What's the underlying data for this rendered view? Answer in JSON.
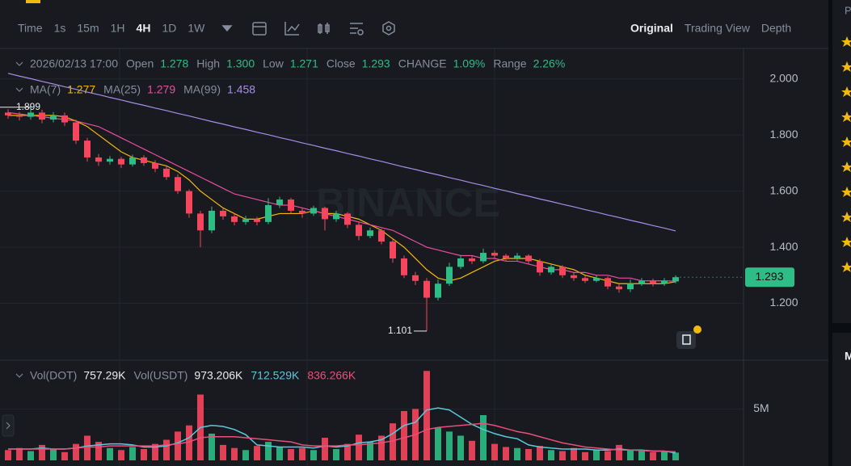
{
  "toolbar": {
    "intervals": [
      {
        "text": "Time",
        "active": false
      },
      {
        "text": "1s",
        "active": false
      },
      {
        "text": "15m",
        "active": false
      },
      {
        "text": "1H",
        "active": false
      },
      {
        "text": "4H",
        "active": true
      },
      {
        "text": "1D",
        "active": false
      },
      {
        "text": "1W",
        "active": false
      }
    ],
    "views": [
      {
        "text": "Original",
        "active": true
      },
      {
        "text": "Trading View",
        "active": false
      },
      {
        "text": "Depth",
        "active": false
      }
    ]
  },
  "side_panel": [
    "P",
    "M"
  ],
  "chart_data": {
    "type": "candlestick",
    "info_bar": {
      "date": "2026/02/13 17:00",
      "items": [
        {
          "label": "Open",
          "value": "1.278"
        },
        {
          "label": "High",
          "value": "1.300"
        },
        {
          "label": "Low",
          "value": "1.271"
        },
        {
          "label": "Close",
          "value": "1.293"
        },
        {
          "label": "CHANGE",
          "value": "1.09%"
        },
        {
          "label": "Range",
          "value": "2.26%"
        }
      ]
    },
    "up_color": "#2ebd85",
    "down_color": "#f6465d",
    "open": [
      1.88,
      1.87,
      1.865,
      1.88,
      1.855,
      1.87,
      1.845,
      1.78,
      1.72,
      1.705,
      1.715,
      1.695,
      1.72,
      1.7,
      1.68,
      1.65,
      1.6,
      1.52,
      1.46,
      1.53,
      1.51,
      1.49,
      1.5,
      1.49,
      1.55,
      1.57,
      1.53,
      1.52,
      1.54,
      1.5,
      1.52,
      1.48,
      1.44,
      1.46,
      1.42,
      1.36,
      1.3,
      1.28,
      1.22,
      1.27,
      1.33,
      1.36,
      1.35,
      1.38,
      1.37,
      1.36,
      1.37,
      1.35,
      1.31,
      1.33,
      1.3,
      1.29,
      1.28,
      1.29,
      1.26,
      1.25,
      1.27,
      1.28,
      1.27,
      1.278
    ],
    "high": [
      1.892,
      1.882,
      1.899,
      1.89,
      1.882,
      1.88,
      1.855,
      1.79,
      1.732,
      1.725,
      1.722,
      1.73,
      1.728,
      1.71,
      1.688,
      1.66,
      1.606,
      1.53,
      1.545,
      1.538,
      1.52,
      1.512,
      1.508,
      1.575,
      1.58,
      1.576,
      1.54,
      1.548,
      1.545,
      1.53,
      1.525,
      1.488,
      1.47,
      1.466,
      1.428,
      1.37,
      1.312,
      1.29,
      1.285,
      1.345,
      1.372,
      1.37,
      1.395,
      1.388,
      1.376,
      1.38,
      1.375,
      1.358,
      1.34,
      1.336,
      1.308,
      1.298,
      1.3,
      1.296,
      1.268,
      1.285,
      1.29,
      1.288,
      1.29,
      1.3
    ],
    "low": [
      1.858,
      1.852,
      1.855,
      1.842,
      1.845,
      1.832,
      1.768,
      1.705,
      1.69,
      1.695,
      1.682,
      1.688,
      1.69,
      1.668,
      1.64,
      1.59,
      1.505,
      1.4,
      1.45,
      1.498,
      1.478,
      1.48,
      1.478,
      1.482,
      1.54,
      1.52,
      1.505,
      1.512,
      1.46,
      1.49,
      1.468,
      1.425,
      1.432,
      1.41,
      1.345,
      1.29,
      1.265,
      1.101,
      1.21,
      1.262,
      1.322,
      1.34,
      1.343,
      1.36,
      1.35,
      1.352,
      1.34,
      1.298,
      1.302,
      1.29,
      1.28,
      1.272,
      1.275,
      1.25,
      1.238,
      1.24,
      1.262,
      1.26,
      1.262,
      1.271
    ],
    "close": [
      1.87,
      1.865,
      1.88,
      1.855,
      1.87,
      1.845,
      1.78,
      1.72,
      1.705,
      1.715,
      1.695,
      1.72,
      1.7,
      1.68,
      1.65,
      1.6,
      1.52,
      1.46,
      1.53,
      1.51,
      1.49,
      1.5,
      1.49,
      1.55,
      1.57,
      1.53,
      1.52,
      1.54,
      1.5,
      1.52,
      1.48,
      1.44,
      1.46,
      1.42,
      1.36,
      1.3,
      1.28,
      1.22,
      1.27,
      1.33,
      1.36,
      1.35,
      1.38,
      1.37,
      1.36,
      1.37,
      1.35,
      1.31,
      1.33,
      1.3,
      1.29,
      1.28,
      1.29,
      1.26,
      1.25,
      1.27,
      1.28,
      1.27,
      1.28,
      1.293
    ],
    "moving_averages": [
      {
        "name": "MA(7)",
        "color": "#f0b90b",
        "values": [
          1.87,
          1.87,
          1.87,
          1.87,
          1.87,
          1.865,
          1.85,
          1.83,
          1.8,
          1.77,
          1.74,
          1.72,
          1.71,
          1.7,
          1.69,
          1.67,
          1.64,
          1.6,
          1.57,
          1.54,
          1.52,
          1.5,
          1.5,
          1.51,
          1.52,
          1.52,
          1.52,
          1.53,
          1.52,
          1.52,
          1.51,
          1.5,
          1.48,
          1.46,
          1.43,
          1.4,
          1.36,
          1.32,
          1.29,
          1.28,
          1.29,
          1.31,
          1.33,
          1.35,
          1.36,
          1.36,
          1.36,
          1.35,
          1.34,
          1.33,
          1.32,
          1.3,
          1.29,
          1.28,
          1.27,
          1.27,
          1.27,
          1.27,
          1.27,
          1.277
        ]
      },
      {
        "name": "MA(25)",
        "color": "#e84fa0",
        "values": [
          1.88,
          1.875,
          1.87,
          1.865,
          1.86,
          1.855,
          1.85,
          1.84,
          1.83,
          1.81,
          1.79,
          1.77,
          1.75,
          1.73,
          1.71,
          1.69,
          1.67,
          1.65,
          1.63,
          1.61,
          1.59,
          1.58,
          1.57,
          1.56,
          1.55,
          1.55,
          1.54,
          1.53,
          1.52,
          1.51,
          1.5,
          1.49,
          1.48,
          1.47,
          1.46,
          1.44,
          1.42,
          1.4,
          1.39,
          1.38,
          1.37,
          1.37,
          1.36,
          1.36,
          1.35,
          1.35,
          1.34,
          1.33,
          1.32,
          1.32,
          1.31,
          1.31,
          1.3,
          1.3,
          1.29,
          1.29,
          1.28,
          1.28,
          1.28,
          1.279
        ]
      },
      {
        "name": "MA(99)",
        "color": "#a58ee8",
        "values": [
          2.02,
          2.01,
          2.001,
          1.991,
          1.982,
          1.972,
          1.963,
          1.953,
          1.944,
          1.934,
          1.925,
          1.915,
          1.906,
          1.896,
          1.887,
          1.877,
          1.868,
          1.858,
          1.848,
          1.839,
          1.829,
          1.82,
          1.81,
          1.801,
          1.791,
          1.782,
          1.772,
          1.763,
          1.753,
          1.744,
          1.734,
          1.725,
          1.715,
          1.706,
          1.696,
          1.686,
          1.677,
          1.667,
          1.658,
          1.648,
          1.639,
          1.629,
          1.62,
          1.61,
          1.601,
          1.591,
          1.582,
          1.572,
          1.563,
          1.553,
          1.544,
          1.534,
          1.525,
          1.515,
          1.506,
          1.496,
          1.487,
          1.477,
          1.468,
          1.458
        ]
      }
    ],
    "ylim": [
      1.0,
      2.1
    ],
    "yticks": [
      {
        "value": 2,
        "label": "2.000"
      },
      {
        "value": 1.8,
        "label": "1.800"
      },
      {
        "value": 1.6,
        "label": "1.600"
      },
      {
        "value": 1.4,
        "label": "1.400"
      },
      {
        "value": 1.2,
        "label": "1.200"
      }
    ],
    "last_price": 1.293,
    "high_marker": 1.899,
    "low_marker": 1.101,
    "watermark": "BINANCE",
    "volume": {
      "name": "Vol(DOT)",
      "value_label": "757.29K",
      "usdt_name": "Vol(USDT)",
      "usdt_label": "973.206K",
      "values": [
        1.0,
        1.2,
        0.9,
        1.5,
        1.1,
        0.8,
        1.6,
        2.4,
        1.8,
        1.2,
        1.0,
        1.3,
        1.1,
        1.6,
        2.0,
        2.8,
        3.4,
        6.4,
        2.6,
        1.5,
        1.2,
        1.0,
        1.4,
        1.8,
        1.3,
        1.1,
        1.2,
        1.0,
        2.2,
        1.1,
        1.6,
        2.5,
        1.8,
        2.4,
        3.6,
        4.8,
        5.0,
        8.7,
        3.2,
        2.8,
        2.4,
        1.9,
        4.4,
        1.6,
        1.3,
        1.2,
        1.1,
        1.4,
        1.0,
        0.9,
        1.2,
        0.8,
        1.0,
        0.9,
        1.5,
        1.0,
        0.9,
        0.8,
        0.9,
        0.75729
      ],
      "ylim": [
        0,
        8.8
      ],
      "yticks": [
        {
          "value": 5,
          "label": "5M"
        }
      ],
      "ma": [
        {
          "color": "#5bc8dc",
          "value_label": "712.529K",
          "values": [
            1.1,
            1.1,
            1.1,
            1.2,
            1.1,
            1.1,
            1.2,
            1.4,
            1.5,
            1.6,
            1.6,
            1.5,
            1.3,
            1.3,
            1.4,
            1.7,
            2.2,
            3.2,
            3.4,
            3.3,
            3.0,
            2.5,
            1.5,
            1.4,
            1.3,
            1.3,
            1.3,
            1.2,
            1.4,
            1.3,
            1.4,
            1.7,
            1.8,
            2.0,
            2.6,
            3.4,
            3.7,
            4.9,
            5.1,
            4.9,
            4.2,
            3.5,
            3.0,
            2.6,
            2.3,
            2.1,
            1.5,
            1.3,
            1.2,
            1.1,
            1.1,
            1.1,
            1.0,
            1.0,
            1.1,
            1.0,
            1.0,
            0.9,
            0.9,
            0.712529
          ]
        },
        {
          "color": "#e84f7a",
          "value_label": "836.266K",
          "values": [
            1.1,
            1.1,
            1.1,
            1.1,
            1.1,
            1.1,
            1.2,
            1.3,
            1.3,
            1.4,
            1.4,
            1.4,
            1.4,
            1.4,
            1.5,
            1.6,
            1.8,
            2.2,
            2.3,
            2.3,
            2.3,
            2.2,
            2.1,
            2.0,
            1.9,
            1.8,
            1.5,
            1.4,
            1.4,
            1.4,
            1.5,
            1.5,
            1.6,
            1.7,
            1.9,
            2.2,
            2.5,
            3.0,
            3.2,
            3.3,
            3.4,
            3.5,
            3.6,
            3.4,
            3.1,
            2.8,
            2.6,
            2.3,
            2.0,
            1.7,
            1.5,
            1.3,
            1.2,
            1.1,
            1.0,
            1.0,
            0.95,
            0.9,
            0.88,
            0.836266
          ]
        }
      ]
    }
  }
}
